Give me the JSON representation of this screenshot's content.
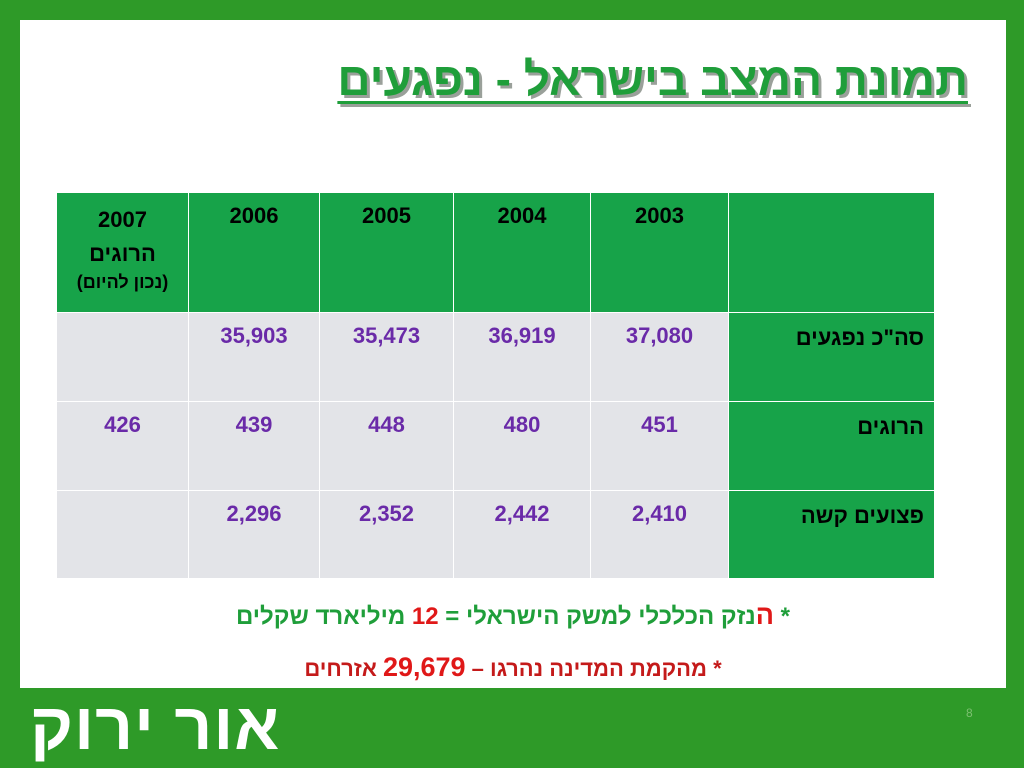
{
  "slide": {
    "title": "תמונת המצב בישראל - נפגעים",
    "page_number": "8",
    "logo_text": "אור ירוק"
  },
  "table": {
    "columns": [
      {
        "year": "2003"
      },
      {
        "year": "2004"
      },
      {
        "year": "2005"
      },
      {
        "year": "2006"
      },
      {
        "year": "2007",
        "line2": "הרוגים",
        "line3": "(נכון להיום)"
      }
    ],
    "rows": [
      {
        "label": "סה\"כ נפגעים",
        "values": [
          "37,080",
          "36,919",
          "35,473",
          "35,903",
          ""
        ]
      },
      {
        "label": "הרוגים",
        "values": [
          "451",
          "480",
          "448",
          "439",
          "426"
        ]
      },
      {
        "label": "פצועים קשה",
        "values": [
          "2,410",
          "2,442",
          "2,352",
          "2,296",
          ""
        ]
      }
    ]
  },
  "notes": {
    "note1": {
      "star": "*",
      "lead": "ה",
      "text_a": "נזק הכלכלי למשק הישראלי =",
      "number": "12",
      "text_b": "מיליארד שקלים"
    },
    "note2": {
      "star": "*",
      "text_a": "מהקמת המדינה נהרגו –",
      "number": "29,679",
      "text_b": "אזרחים"
    }
  },
  "colors": {
    "frame": "#2e9a28",
    "header": "#17a349",
    "cell": "#e3e4e8",
    "value": "#6a2aa8",
    "accent_red": "#e01818"
  }
}
